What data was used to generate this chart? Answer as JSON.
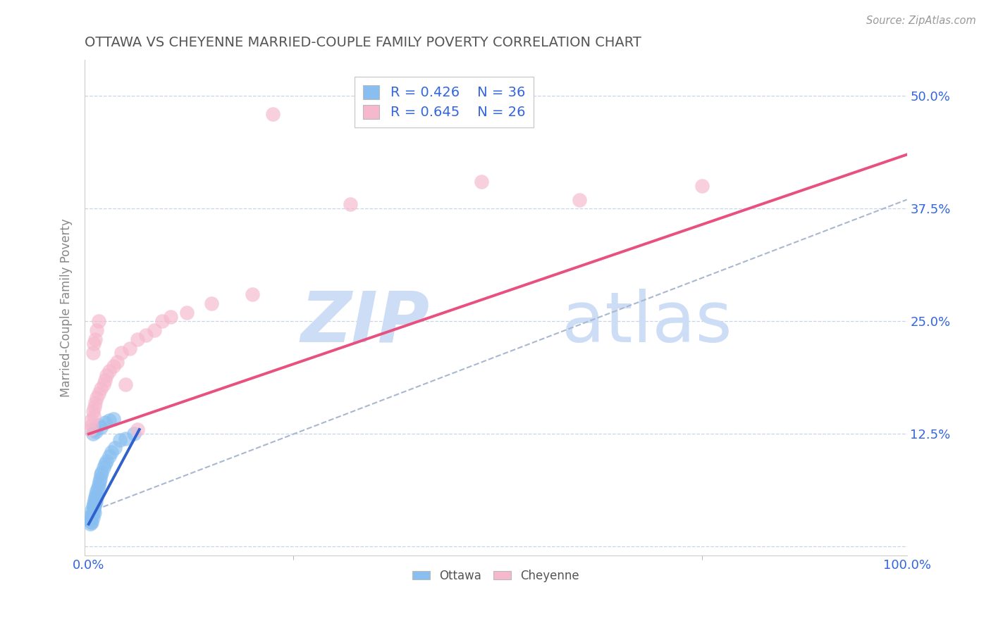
{
  "title": "OTTAWA VS CHEYENNE MARRIED-COUPLE FAMILY POVERTY CORRELATION CHART",
  "source": "Source: ZipAtlas.com",
  "ylabel": "Married-Couple Family Poverty",
  "xlim": [
    -0.005,
    1.0
  ],
  "ylim": [
    -0.01,
    0.54
  ],
  "xticks": [
    0.0,
    0.5,
    1.0
  ],
  "xticklabels": [
    "0.0%",
    "",
    "100.0%"
  ],
  "yticks": [
    0.0,
    0.125,
    0.25,
    0.375,
    0.5
  ],
  "yticklabels": [
    "",
    "12.5%",
    "25.0%",
    "37.5%",
    "50.0%"
  ],
  "ottawa_color": "#89bff0",
  "cheyenne_color": "#f5b8cc",
  "ottawa_line_color": "#3060cc",
  "cheyenne_line_color": "#e85080",
  "dash_line_color": "#a8b8d0",
  "legend_text_color": "#3366dd",
  "title_color": "#555555",
  "source_color": "#999999",
  "background_color": "#ffffff",
  "grid_color": "#c8d4e8",
  "watermark_color": "#ccddf5",
  "R_ottawa": 0.426,
  "N_ottawa": 36,
  "R_cheyenne": 0.645,
  "N_cheyenne": 26,
  "ottawa_x": [
    0.002,
    0.002,
    0.003,
    0.003,
    0.004,
    0.004,
    0.004,
    0.005,
    0.005,
    0.005,
    0.006,
    0.006,
    0.007,
    0.007,
    0.007,
    0.008,
    0.008,
    0.009,
    0.009,
    0.01,
    0.01,
    0.011,
    0.012,
    0.013,
    0.014,
    0.015,
    0.016,
    0.018,
    0.02,
    0.022,
    0.025,
    0.028,
    0.032,
    0.038,
    0.045,
    0.055
  ],
  "ottawa_y": [
    0.03,
    0.025,
    0.035,
    0.028,
    0.04,
    0.033,
    0.027,
    0.045,
    0.038,
    0.032,
    0.048,
    0.042,
    0.052,
    0.046,
    0.038,
    0.055,
    0.048,
    0.058,
    0.05,
    0.062,
    0.055,
    0.065,
    0.068,
    0.072,
    0.075,
    0.08,
    0.082,
    0.088,
    0.092,
    0.095,
    0.1,
    0.105,
    0.11,
    0.118,
    0.12,
    0.125
  ],
  "cheyenne_x": [
    0.002,
    0.003,
    0.004,
    0.005,
    0.006,
    0.007,
    0.008,
    0.01,
    0.012,
    0.015,
    0.018,
    0.02,
    0.022,
    0.025,
    0.03,
    0.035,
    0.04,
    0.05,
    0.06,
    0.07,
    0.08,
    0.09,
    0.1,
    0.12,
    0.15,
    0.2
  ],
  "cheyenne_y": [
    0.13,
    0.14,
    0.135,
    0.15,
    0.145,
    0.155,
    0.16,
    0.165,
    0.17,
    0.175,
    0.18,
    0.185,
    0.19,
    0.195,
    0.2,
    0.205,
    0.215,
    0.22,
    0.23,
    0.235,
    0.24,
    0.25,
    0.255,
    0.26,
    0.27,
    0.28
  ],
  "cheyenne_extra_x": [
    0.005,
    0.006,
    0.008,
    0.01,
    0.012,
    0.045,
    0.06,
    0.32,
    0.48,
    0.6,
    0.75
  ],
  "cheyenne_extra_y": [
    0.215,
    0.225,
    0.23,
    0.24,
    0.25,
    0.18,
    0.13,
    0.38,
    0.405,
    0.385,
    0.4
  ],
  "cheyenne_outlier_x": [
    0.225
  ],
  "cheyenne_outlier_y": [
    0.48
  ],
  "ottawa_extra_x": [
    0.005,
    0.007,
    0.009,
    0.012,
    0.015,
    0.02,
    0.025,
    0.03
  ],
  "ottawa_extra_y": [
    0.125,
    0.13,
    0.128,
    0.135,
    0.132,
    0.138,
    0.14,
    0.142
  ]
}
